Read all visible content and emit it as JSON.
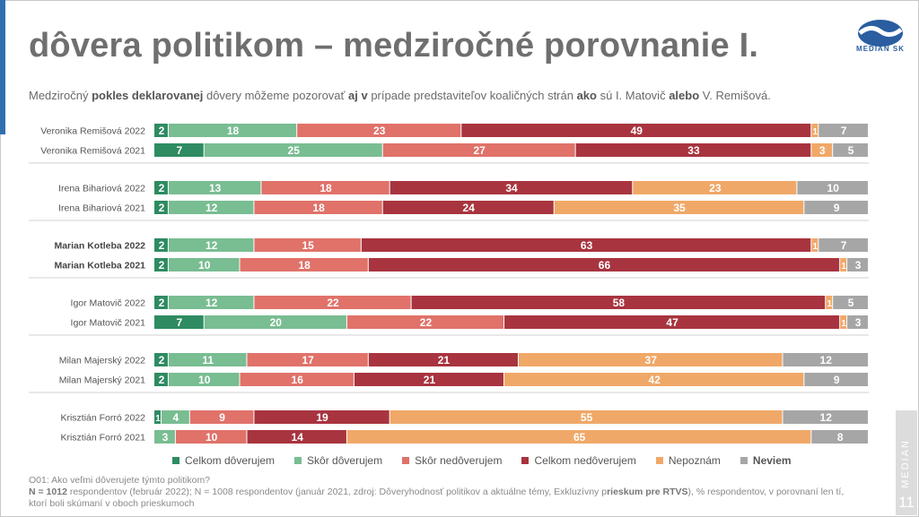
{
  "header": {
    "title": "dôvera politikom – medziročné porovnanie I.",
    "subtitle_parts": [
      {
        "text": "Medziročný ",
        "bold": false
      },
      {
        "text": "pokles deklarovanej",
        "bold": true
      },
      {
        "text": " dôvery môžeme pozorovať ",
        "bold": false
      },
      {
        "text": "aj v",
        "bold": true
      },
      {
        "text": " prípade predstaviteľov koaličných strán ",
        "bold": false
      },
      {
        "text": "ako",
        "bold": true
      },
      {
        "text": " sú I. Matovič ",
        "bold": false
      },
      {
        "text": "alebo",
        "bold": true
      },
      {
        "text": " V. Remišová.",
        "bold": false
      }
    ]
  },
  "logo": {
    "text": "MEDIAN SK"
  },
  "side_tab": {
    "word": "MEDIAN",
    "page_number": "11"
  },
  "chart_data": {
    "type": "bar",
    "orientation": "horizontal",
    "stacked": true,
    "unit": "% respondentov",
    "categories": [
      "Veronika Remišová 2022",
      "Veronika Remišová 2021",
      "Irena Bihariová 2022",
      "Irena Bihariová 2021",
      "Marian Kotleba 2022",
      "Marian Kotleba 2021",
      "Igor Matovič 2022",
      "Igor Matovič 2021",
      "Milan Majerský 2022",
      "Milan Majerský 2021",
      "Krisztián Forró 2022",
      "Krisztián Forró 2021"
    ],
    "bold_categories": [
      "Marian Kotleba 2022",
      "Marian Kotleba 2021"
    ],
    "series": [
      {
        "name": "Celkom dôverujem",
        "color": "#2e8b62",
        "values": [
          2,
          7,
          2,
          2,
          2,
          2,
          2,
          7,
          2,
          2,
          1,
          0
        ]
      },
      {
        "name": "Skôr dôverujem",
        "color": "#79bd92",
        "values": [
          18,
          25,
          13,
          12,
          12,
          10,
          12,
          20,
          11,
          10,
          4,
          3
        ]
      },
      {
        "name": "Skôr nedôverujem",
        "color": "#e0726a",
        "values": [
          23,
          27,
          18,
          18,
          15,
          18,
          22,
          22,
          17,
          16,
          9,
          10
        ]
      },
      {
        "name": "Celkom nedôverujem",
        "color": "#a8343f",
        "values": [
          49,
          33,
          34,
          24,
          63,
          66,
          58,
          47,
          21,
          21,
          19,
          14
        ]
      },
      {
        "name": "Nepoznám",
        "color": "#f0a868",
        "values": [
          1,
          3,
          23,
          35,
          1,
          1,
          1,
          1,
          37,
          42,
          55,
          65
        ]
      },
      {
        "name": "Neviem",
        "color": "#a6a6a6",
        "values": [
          7,
          5,
          10,
          9,
          7,
          3,
          5,
          3,
          12,
          9,
          12,
          8
        ]
      }
    ],
    "legend_bold": [
      "Neviem"
    ],
    "legend_position": "bottom"
  },
  "footnote": {
    "question": "O01: Ako veľmi dôverujete týmto politikom?",
    "n_parts": [
      {
        "text": "N = 1012",
        "bold": true
      },
      {
        "text": " respondentov (február 2022); N = 1008 respondentov (január 2021, zdroj: Dôveryhodnosť politikov a aktuálne témy, Exkluzívny p",
        "bold": false
      },
      {
        "text": "rieskum pre RTVS",
        "bold": true
      },
      {
        "text": "), % respondentov, v porovnaní len tí, ktorí boli skúmaní v oboch prieskumoch",
        "bold": false
      }
    ]
  }
}
